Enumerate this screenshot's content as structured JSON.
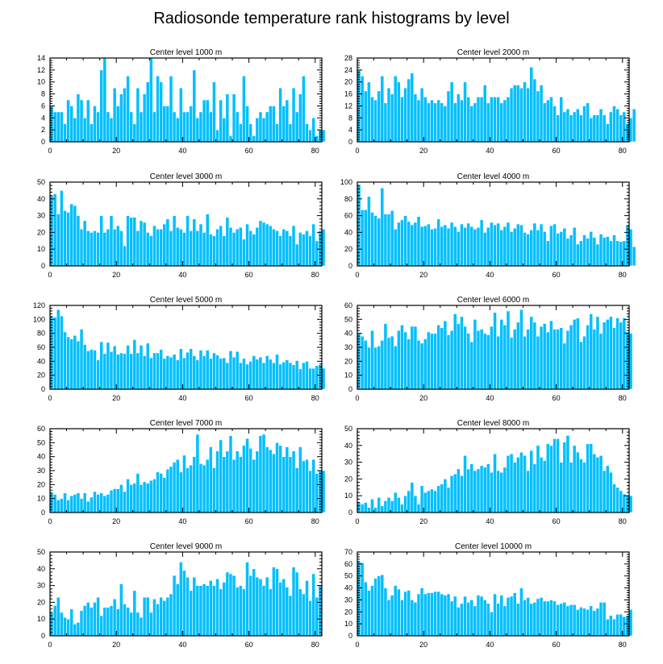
{
  "figure_title": "Radiosonde temperature rank histograms by level",
  "chart_data": [
    {
      "type": "bar",
      "title": "Center level 1000 m",
      "xlim": [
        0,
        82
      ],
      "xticks": [
        0,
        20,
        40,
        60,
        80
      ],
      "ylim": [
        0,
        14
      ],
      "yticks": [
        0,
        2,
        4,
        6,
        8,
        10,
        12,
        14
      ],
      "values": [
        6,
        5,
        5,
        5,
        3,
        7,
        6,
        4,
        8,
        7,
        4,
        7,
        3,
        6,
        5,
        12,
        14,
        5,
        4,
        9,
        6,
        8,
        9,
        11,
        5,
        3,
        9,
        5,
        8,
        10,
        14,
        5,
        11,
        10,
        6,
        6,
        11,
        5,
        4,
        9,
        5,
        5,
        6,
        12,
        4,
        5,
        7,
        7,
        5,
        10,
        2,
        7,
        4,
        8,
        1,
        8,
        5,
        3,
        11,
        6,
        3,
        1,
        4,
        5,
        4,
        5,
        6,
        6,
        3,
        9,
        6,
        7,
        3,
        9,
        5,
        8,
        11,
        3,
        2,
        4,
        1,
        2,
        2
      ]
    },
    {
      "type": "bar",
      "title": "Center level 2000 m",
      "xlim": [
        0,
        82
      ],
      "xticks": [
        0,
        20,
        40,
        60,
        80
      ],
      "ylim": [
        0,
        28
      ],
      "yticks": [
        0,
        4,
        8,
        12,
        16,
        20,
        24,
        28
      ],
      "values": [
        24,
        22,
        17,
        20,
        15,
        14,
        17,
        22,
        13,
        18,
        16,
        22,
        20,
        15,
        18,
        21,
        23,
        16,
        14,
        18,
        15,
        13,
        14,
        13,
        14,
        13,
        12,
        17,
        20,
        13,
        16,
        14,
        20,
        15,
        12,
        13,
        15,
        15,
        19,
        13,
        15,
        15,
        15,
        13,
        14,
        15,
        18,
        19,
        19,
        18,
        20,
        18,
        25,
        21,
        17,
        19,
        13,
        14,
        15,
        12,
        9,
        15,
        10,
        11,
        9,
        10,
        11,
        9,
        12,
        13,
        8,
        9,
        9,
        11,
        9,
        6,
        10,
        12,
        11,
        9,
        10,
        6,
        8,
        11
      ]
    },
    {
      "type": "bar",
      "title": "Center level 3000 m",
      "xlim": [
        0,
        82
      ],
      "xticks": [
        0,
        20,
        40,
        60,
        80
      ],
      "ylim": [
        0,
        50
      ],
      "yticks": [
        0,
        10,
        20,
        30,
        40,
        50
      ],
      "values": [
        42,
        43,
        31,
        45,
        33,
        32,
        37,
        36,
        30,
        22,
        27,
        21,
        20,
        21,
        20,
        30,
        20,
        22,
        30,
        22,
        24,
        21,
        12,
        30,
        29,
        29,
        21,
        27,
        26,
        20,
        18,
        24,
        22,
        22,
        25,
        28,
        21,
        30,
        23,
        22,
        20,
        30,
        21,
        28,
        21,
        25,
        20,
        31,
        19,
        18,
        22,
        24,
        18,
        29,
        23,
        20,
        22,
        23,
        16,
        25,
        21,
        19,
        23,
        27,
        26,
        25,
        24,
        22,
        21,
        18,
        22,
        21,
        18,
        24,
        13,
        20,
        19,
        21,
        18,
        25,
        15,
        21,
        22
      ]
    },
    {
      "type": "bar",
      "title": "Center level 4000 m",
      "xlim": [
        0,
        82
      ],
      "xticks": [
        0,
        20,
        40,
        60,
        80
      ],
      "ylim": [
        0,
        100
      ],
      "yticks": [
        0,
        20,
        40,
        60,
        80,
        100
      ],
      "values": [
        97,
        67,
        67,
        83,
        64,
        60,
        57,
        93,
        62,
        62,
        66,
        44,
        52,
        55,
        60,
        53,
        49,
        52,
        59,
        47,
        48,
        50,
        44,
        45,
        56,
        47,
        49,
        45,
        52,
        47,
        41,
        50,
        46,
        51,
        47,
        44,
        46,
        55,
        40,
        46,
        52,
        49,
        51,
        43,
        47,
        52,
        41,
        45,
        50,
        49,
        40,
        38,
        43,
        51,
        43,
        50,
        41,
        30,
        48,
        50,
        39,
        41,
        45,
        33,
        37,
        46,
        26,
        30,
        37,
        33,
        41,
        34,
        26,
        38,
        34,
        35,
        30,
        37,
        30,
        29,
        30,
        49,
        44,
        23
      ]
    },
    {
      "type": "bar",
      "title": "Center level 5000 m",
      "xlim": [
        0,
        82
      ],
      "xticks": [
        0,
        20,
        40,
        60,
        80
      ],
      "ylim": [
        0,
        120
      ],
      "yticks": [
        0,
        20,
        40,
        60,
        80,
        100,
        120
      ],
      "values": [
        105,
        103,
        114,
        105,
        82,
        75,
        72,
        77,
        69,
        86,
        64,
        55,
        57,
        56,
        42,
        68,
        51,
        67,
        54,
        62,
        50,
        52,
        51,
        63,
        51,
        71,
        52,
        63,
        48,
        66,
        45,
        52,
        52,
        57,
        44,
        48,
        46,
        50,
        42,
        58,
        45,
        53,
        58,
        48,
        42,
        56,
        48,
        56,
        44,
        52,
        49,
        44,
        45,
        38,
        55,
        46,
        54,
        38,
        44,
        36,
        40,
        48,
        43,
        46,
        38,
        48,
        43,
        38,
        50,
        36,
        39,
        42,
        38,
        35,
        41,
        29,
        38,
        40,
        30,
        30,
        34,
        35,
        30
      ]
    },
    {
      "type": "bar",
      "title": "Center level 6000 m",
      "xlim": [
        0,
        82
      ],
      "xticks": [
        0,
        20,
        40,
        60,
        80
      ],
      "ylim": [
        0,
        60
      ],
      "yticks": [
        0,
        10,
        20,
        30,
        40,
        50,
        60
      ],
      "values": [
        40,
        38,
        35,
        30,
        42,
        30,
        31,
        35,
        47,
        37,
        38,
        31,
        42,
        46,
        41,
        36,
        45,
        45,
        35,
        33,
        36,
        41,
        40,
        40,
        46,
        44,
        49,
        39,
        42,
        54,
        47,
        52,
        45,
        40,
        34,
        50,
        42,
        43,
        40,
        39,
        45,
        55,
        38,
        50,
        46,
        56,
        37,
        43,
        48,
        57,
        38,
        43,
        52,
        48,
        38,
        45,
        47,
        41,
        49,
        43,
        43,
        44,
        33,
        42,
        46,
        50,
        51,
        34,
        38,
        46,
        54,
        43,
        52,
        40,
        48,
        50,
        52,
        44,
        51,
        48,
        51,
        41,
        40
      ]
    },
    {
      "type": "bar",
      "title": "Center level 7000 m",
      "xlim": [
        0,
        82
      ],
      "xticks": [
        0,
        20,
        40,
        60,
        80
      ],
      "ylim": [
        0,
        60
      ],
      "yticks": [
        0,
        10,
        20,
        30,
        40,
        50,
        60
      ],
      "values": [
        14,
        13,
        9,
        10,
        14,
        9,
        12,
        13,
        14,
        10,
        14,
        8,
        11,
        15,
        13,
        14,
        12,
        13,
        16,
        17,
        17,
        20,
        15,
        24,
        20,
        21,
        28,
        20,
        22,
        21,
        23,
        24,
        29,
        28,
        25,
        31,
        33,
        36,
        38,
        29,
        41,
        32,
        34,
        40,
        56,
        35,
        34,
        38,
        47,
        32,
        44,
        52,
        40,
        44,
        55,
        38,
        44,
        40,
        48,
        53,
        46,
        38,
        44,
        55,
        56,
        47,
        45,
        42,
        50,
        48,
        40,
        47,
        40,
        44,
        32,
        47,
        37,
        38,
        30,
        38,
        28,
        30,
        30
      ]
    },
    {
      "type": "bar",
      "title": "Center level 8000 m",
      "xlim": [
        0,
        82
      ],
      "xticks": [
        0,
        20,
        40,
        60,
        80
      ],
      "ylim": [
        0,
        50
      ],
      "yticks": [
        0,
        10,
        20,
        30,
        40,
        50
      ],
      "values": [
        6,
        5,
        6,
        3,
        8,
        3,
        9,
        4,
        7,
        9,
        7,
        12,
        9,
        5,
        10,
        13,
        18,
        10,
        5,
        16,
        12,
        13,
        14,
        13,
        16,
        17,
        20,
        15,
        22,
        23,
        26,
        22,
        34,
        26,
        29,
        25,
        26,
        28,
        27,
        29,
        24,
        35,
        25,
        24,
        27,
        34,
        35,
        30,
        33,
        36,
        34,
        25,
        37,
        29,
        40,
        33,
        31,
        41,
        40,
        44,
        44,
        30,
        42,
        46,
        30,
        40,
        36,
        32,
        30,
        41,
        41,
        35,
        33,
        34,
        25,
        28,
        24,
        17,
        15,
        13,
        11,
        10,
        10
      ]
    },
    {
      "type": "bar",
      "title": "Center level 9000 m",
      "xlim": [
        0,
        82
      ],
      "xticks": [
        0,
        20,
        40,
        60,
        80
      ],
      "ylim": [
        0,
        50
      ],
      "yticks": [
        0,
        10,
        20,
        30,
        40,
        50
      ],
      "values": [
        14,
        18,
        23,
        14,
        11,
        10,
        16,
        7,
        8,
        15,
        18,
        20,
        17,
        20,
        23,
        12,
        17,
        17,
        18,
        22,
        16,
        31,
        19,
        17,
        14,
        27,
        14,
        11,
        23,
        23,
        14,
        22,
        19,
        23,
        21,
        23,
        25,
        36,
        31,
        44,
        39,
        35,
        27,
        35,
        30,
        30,
        31,
        30,
        33,
        30,
        34,
        28,
        32,
        38,
        37,
        36,
        29,
        30,
        28,
        44,
        36,
        40,
        35,
        34,
        30,
        35,
        28,
        41,
        40,
        32,
        34,
        29,
        24,
        41,
        38,
        28,
        25,
        33,
        21,
        37,
        23,
        30
      ]
    },
    {
      "type": "bar",
      "title": "Center level 10000 m",
      "xlim": [
        0,
        82
      ],
      "xticks": [
        0,
        20,
        40,
        60,
        80
      ],
      "ylim": [
        0,
        70
      ],
      "yticks": [
        0,
        10,
        20,
        30,
        40,
        50,
        60,
        70
      ],
      "values": [
        62,
        61,
        45,
        38,
        42,
        48,
        50,
        51,
        40,
        30,
        34,
        42,
        39,
        30,
        37,
        38,
        30,
        28,
        35,
        40,
        35,
        36,
        36,
        37,
        37,
        35,
        34,
        35,
        29,
        33,
        24,
        27,
        33,
        28,
        30,
        25,
        34,
        33,
        30,
        27,
        20,
        35,
        27,
        34,
        25,
        32,
        33,
        36,
        27,
        40,
        30,
        32,
        27,
        28,
        31,
        32,
        29,
        29,
        30,
        29,
        26,
        27,
        28,
        25,
        26,
        26,
        22,
        24,
        23,
        22,
        25,
        21,
        23,
        28,
        28,
        14,
        17,
        14,
        18,
        18,
        16,
        17,
        22
      ]
    }
  ]
}
